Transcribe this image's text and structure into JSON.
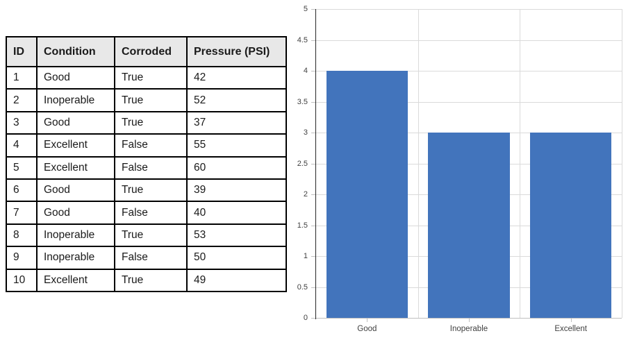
{
  "table": {
    "headers": [
      "ID",
      "Condition",
      "Corroded",
      "Pressure (PSI)"
    ],
    "rows": [
      [
        "1",
        "Good",
        "True",
        "42"
      ],
      [
        "2",
        "Inoperable",
        "True",
        "52"
      ],
      [
        "3",
        "Good",
        "True",
        "37"
      ],
      [
        "4",
        "Excellent",
        "False",
        "55"
      ],
      [
        "5",
        "Excellent",
        "False",
        "60"
      ],
      [
        "6",
        "Good",
        "True",
        "39"
      ],
      [
        "7",
        "Good",
        "False",
        "40"
      ],
      [
        "8",
        "Inoperable",
        "True",
        "53"
      ],
      [
        "9",
        "Inoperable",
        "False",
        "50"
      ],
      [
        "10",
        "Excellent",
        "True",
        "49"
      ]
    ]
  },
  "chart_data": {
    "type": "bar",
    "categories": [
      "Good",
      "Inoperable",
      "Excellent"
    ],
    "values": [
      4,
      3,
      3
    ],
    "title": "",
    "xlabel": "",
    "ylabel": "",
    "ylim": [
      0,
      5
    ],
    "yticks": [
      0,
      0.5,
      1,
      1.5,
      2,
      2.5,
      3,
      3.5,
      4,
      4.5,
      5
    ],
    "grid": true,
    "legend_position": "none",
    "bar_width_fraction": 0.8
  },
  "colors": {
    "bar_fill": "#4274BC",
    "gridline": "#DADADA",
    "axis_line": "#262626",
    "bottom_axis_line": "#BFBFBF",
    "tick_mark": "#C0C0C0",
    "tick_label": "#404040",
    "table_border": "#000000",
    "table_header_bg": "#E8E8E8",
    "table_text": "#1A1A1A"
  }
}
